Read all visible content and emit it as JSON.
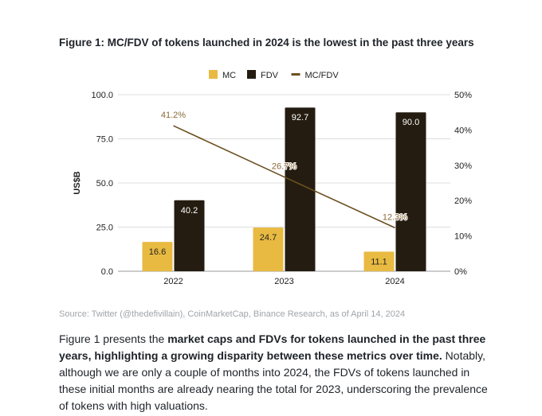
{
  "figure_title": "Figure 1: MC/FDV of tokens launched in 2024 is the lowest in the past three years",
  "source": "Source: Twitter (@thedefivillain), CoinMarketCap, Binance Research, as of April 14, 2024",
  "paragraph": {
    "intro": "Figure 1 presents the ",
    "bold": "market caps and FDVs for tokens launched in the past three years, highlighting a growing disparity between these metrics over time.",
    "rest": " Notably, although we are only a couple of months into 2024, the FDVs of tokens launched in these initial months are already nearing the total for 2023, underscoring the prevalence of tokens with high valuations."
  },
  "chart_data": {
    "type": "bar",
    "categories": [
      "2022",
      "2023",
      "2024"
    ],
    "series": [
      {
        "name": "MC",
        "type": "bar",
        "axis": "left",
        "color": "#E8BA41",
        "values": [
          16.6,
          24.7,
          11.1
        ],
        "labels": [
          "16.6",
          "24.7",
          "11.1"
        ]
      },
      {
        "name": "FDV",
        "type": "bar",
        "axis": "left",
        "color": "#241C10",
        "values": [
          40.2,
          92.7,
          90.0
        ],
        "labels": [
          "40.2",
          "92.7",
          "90.0"
        ]
      },
      {
        "name": "MC/FDV",
        "type": "line",
        "axis": "right",
        "color": "#6B5020",
        "values": [
          41.2,
          26.7,
          12.3
        ],
        "labels": [
          "41.2%",
          "26.7%",
          "12.3%"
        ]
      }
    ],
    "ylabel": "US$B",
    "ylim": [
      0,
      100
    ],
    "yticks": [
      "0.0",
      "25.0",
      "50.0",
      "75.0",
      "100.0"
    ],
    "y2lim": [
      0,
      50
    ],
    "y2ticks": [
      "0%",
      "10%",
      "20%",
      "30%",
      "40%",
      "50%"
    ],
    "grid": true,
    "legend_position": "top"
  }
}
